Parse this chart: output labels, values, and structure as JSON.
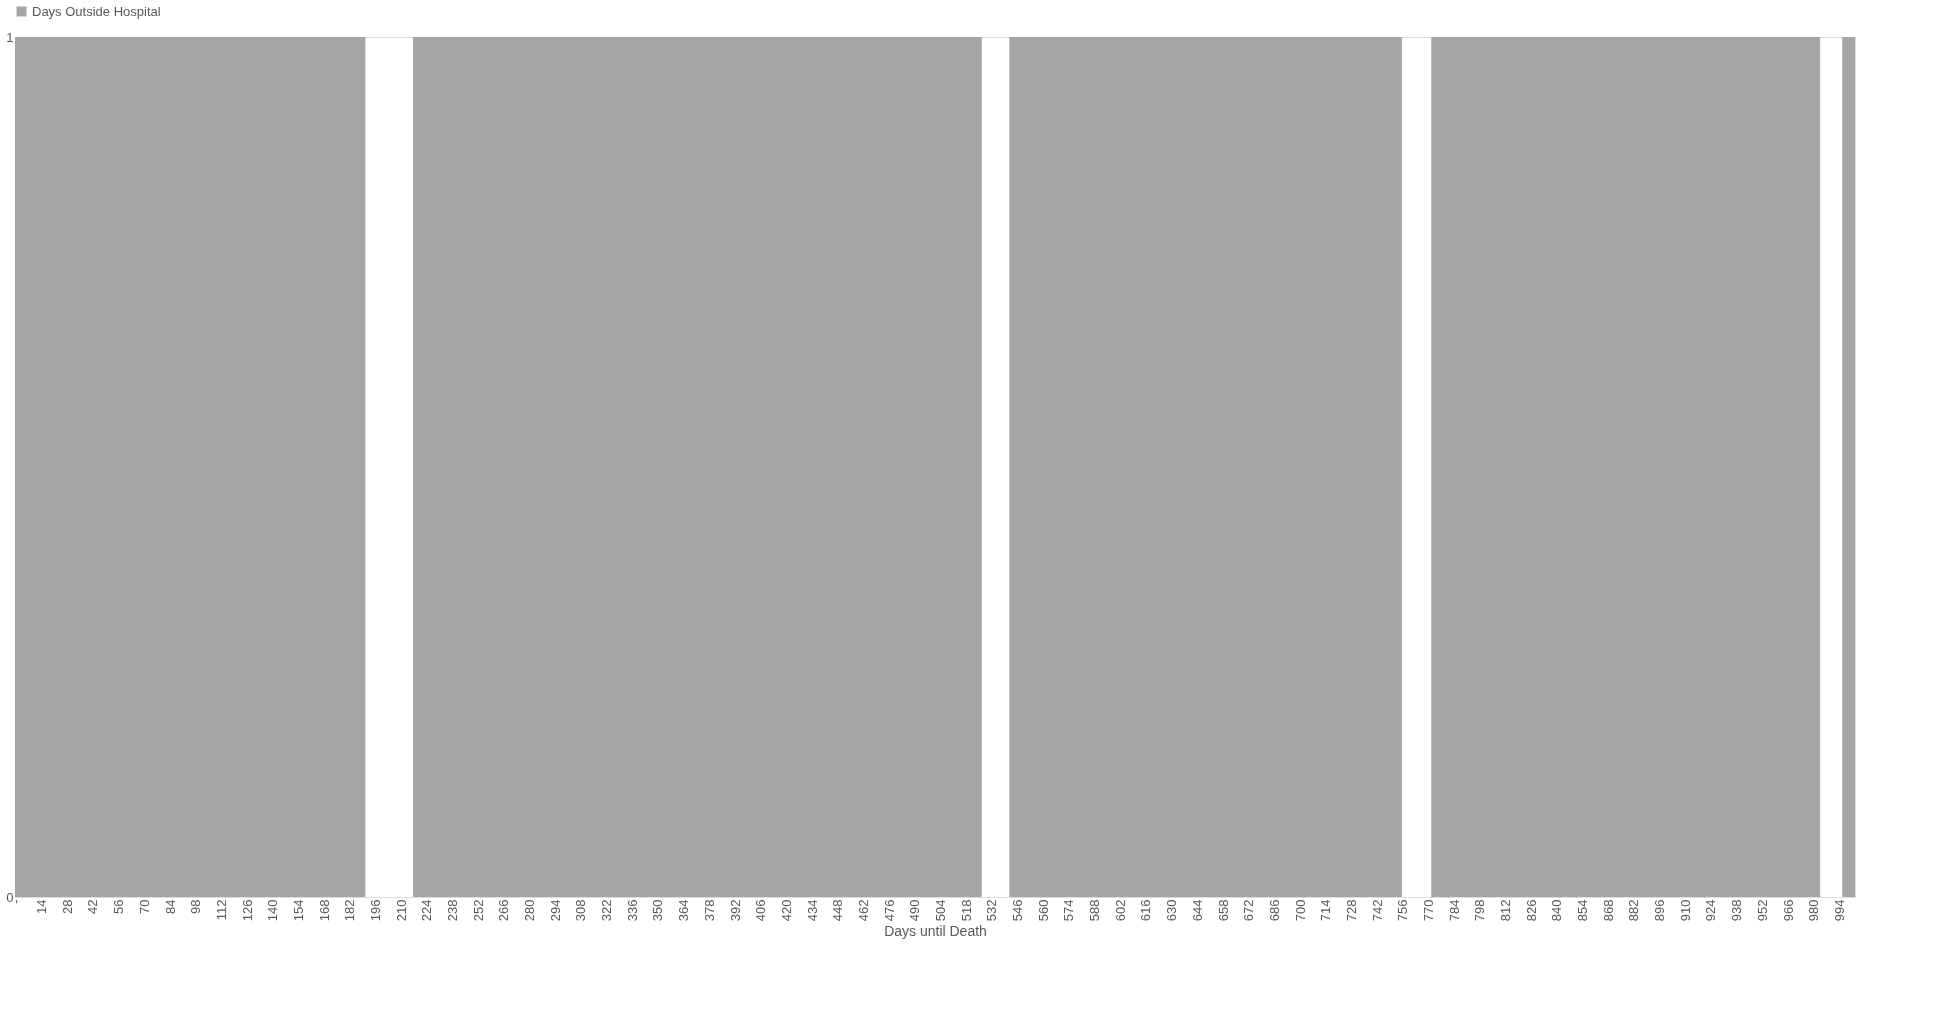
{
  "chart_data": {
    "type": "bar",
    "xlabel": "Days until Death",
    "xlim": [
      -0.5,
      1002.5
    ],
    "xticks": [
      {
        "value": 0,
        "label": "-"
      },
      14,
      28,
      42,
      56,
      70,
      84,
      98,
      112,
      126,
      140,
      154,
      168,
      182,
      196,
      210,
      224,
      238,
      252,
      266,
      280,
      294,
      308,
      322,
      336,
      350,
      364,
      378,
      392,
      406,
      420,
      434,
      448,
      462,
      476,
      490,
      504,
      518,
      532,
      546,
      560,
      574,
      588,
      602,
      616,
      630,
      644,
      658,
      672,
      686,
      700,
      714,
      728,
      742,
      756,
      770,
      784,
      798,
      812,
      826,
      840,
      854,
      868,
      882,
      896,
      910,
      924,
      938,
      952,
      966,
      980,
      994
    ],
    "bands": [
      {
        "axis": "x",
        "from": -0.5,
        "to": 190.5,
        "label": "Days Outside Hospital",
        "color": "#a5a5a5"
      },
      {
        "axis": "x",
        "from": 216.5,
        "to": 526.5,
        "color": "#a5a5a5"
      },
      {
        "axis": "x",
        "from": 541.5,
        "to": 755.5,
        "color": "#a5a5a5"
      },
      {
        "axis": "x",
        "from": 771.5,
        "to": 983.5,
        "color": "#a5a5a5"
      },
      {
        "axis": "x",
        "from": 995.5,
        "to": 1002.5,
        "color": "#a5a5a5"
      }
    ],
    "ylim": [
      0,
      1
    ],
    "yticks": [
      0,
      1
    ],
    "grid": false,
    "legend": "top"
  }
}
